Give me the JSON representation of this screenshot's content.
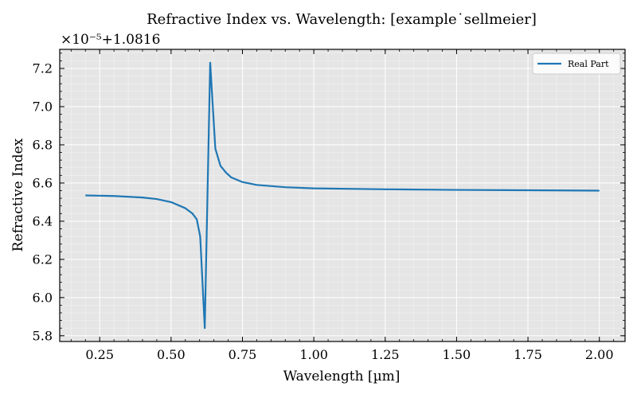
{
  "chart_data": {
    "type": "line",
    "title": "Refractive Index vs. Wavelength: [example˙sellmeier]",
    "xlabel": "Wavelength [µm]",
    "ylabel": "Refractive Index",
    "offset_text": "×10⁻⁵+1.0816",
    "xlim": [
      0.11,
      2.09
    ],
    "ylim": [
      5.77,
      7.3
    ],
    "xticks": [
      0.25,
      0.5,
      0.75,
      1.0,
      1.25,
      1.5,
      1.75,
      2.0
    ],
    "xtick_labels": [
      "0.25",
      "0.50",
      "0.75",
      "1.00",
      "1.25",
      "1.50",
      "1.75",
      "2.00"
    ],
    "yticks": [
      5.8,
      6.0,
      6.2,
      6.4,
      6.6,
      6.8,
      7.0,
      7.2
    ],
    "ytick_labels": [
      "5.8",
      "6.0",
      "6.2",
      "6.4",
      "6.6",
      "6.8",
      "7.0",
      "7.2"
    ],
    "grid": true,
    "legend_position": "top-right",
    "background": "#e5e5e5",
    "series": [
      {
        "name": "Real Part",
        "color": "#1f77b4",
        "x": [
          0.2,
          0.3,
          0.4,
          0.45,
          0.5,
          0.55,
          0.575,
          0.59,
          0.602,
          0.618,
          0.637,
          0.655,
          0.673,
          0.692,
          0.71,
          0.75,
          0.8,
          0.9,
          1.0,
          1.25,
          1.5,
          1.75,
          2.0
        ],
        "y": [
          6.535,
          6.532,
          6.524,
          6.516,
          6.5,
          6.468,
          6.44,
          6.41,
          6.32,
          5.84,
          7.23,
          6.78,
          6.69,
          6.655,
          6.63,
          6.605,
          6.59,
          6.578,
          6.572,
          6.567,
          6.564,
          6.562,
          6.56
        ]
      }
    ]
  }
}
